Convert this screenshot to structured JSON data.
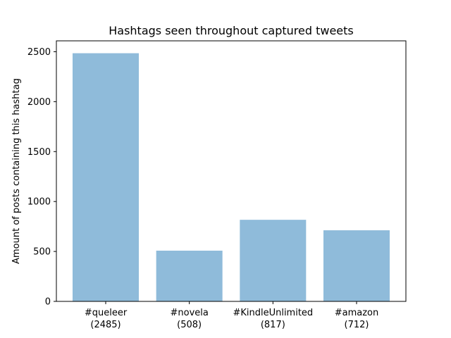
{
  "chart_data": {
    "type": "bar",
    "title": "Hashtags seen throughout captured tweets",
    "xlabel": "",
    "ylabel": "Amount of posts containing this hashtag",
    "categories": [
      "#queleer\n(2485)",
      "#novela\n(508)",
      "#KindleUnlimited\n(817)",
      "#amazon\n(712)"
    ],
    "values": [
      2485,
      508,
      817,
      712
    ],
    "ylim": [
      0,
      2609
    ],
    "yticks": [
      0,
      500,
      1000,
      1500,
      2000,
      2500
    ],
    "grid": false,
    "bar_color": "#8fbbda"
  }
}
